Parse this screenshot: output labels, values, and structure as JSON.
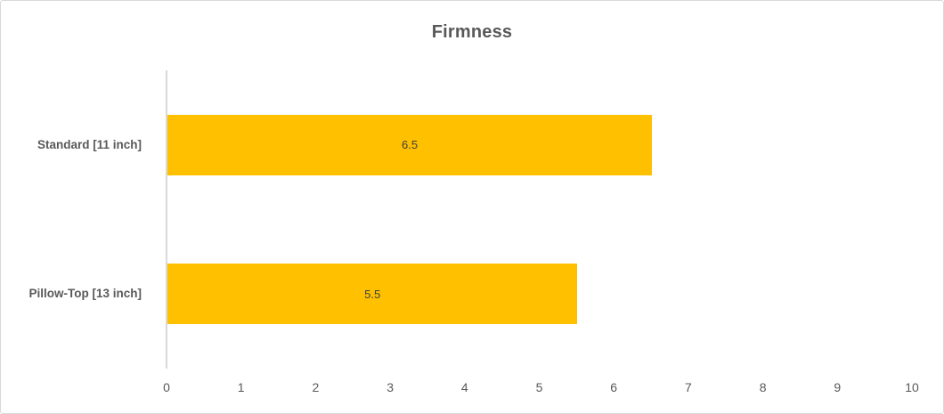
{
  "chart_data": {
    "type": "bar",
    "orientation": "horizontal",
    "title": "Firmness",
    "categories": [
      "Standard [11 inch]",
      "Pillow-Top [13 inch]"
    ],
    "values": [
      6.5,
      5.5
    ],
    "data_labels": [
      "6.5",
      "5.5"
    ],
    "xlabel": "",
    "ylabel": "",
    "xlim": [
      0,
      10
    ],
    "x_ticks": [
      0,
      1,
      2,
      3,
      4,
      5,
      6,
      7,
      8,
      9,
      10
    ],
    "grid": false,
    "legend_position": "none",
    "colors": {
      "bar_fill": "#FFC000",
      "title_text": "#595959",
      "axis_text": "#595959",
      "data_label_text": "#3F3F3F",
      "axis_line": "#D9D9D9",
      "chart_border": "#D9D9D9"
    }
  }
}
